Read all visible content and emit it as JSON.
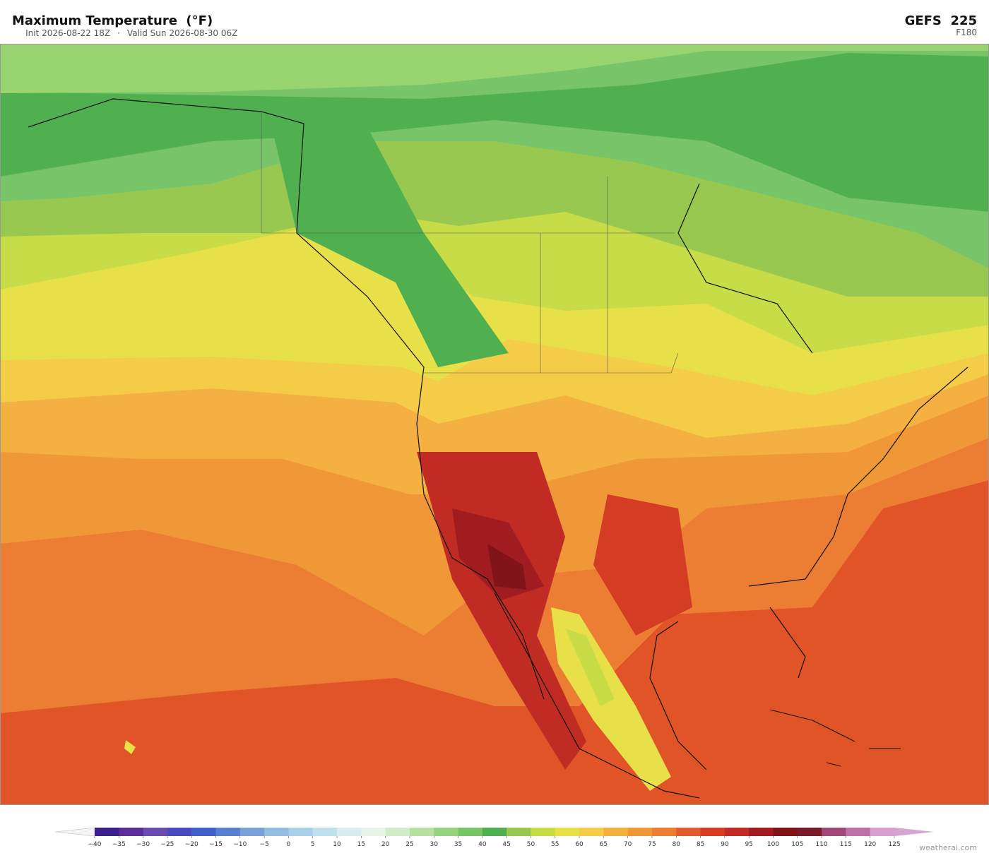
{
  "header": {
    "title": "Maximum Temperature  (°F)",
    "init": "Init 2026-08-22 18Z",
    "separator": "·",
    "valid": "Valid Sun 2026-08-30 06Z",
    "model": "GEFS  225",
    "forecast_hour": "F180"
  },
  "colorbar": {
    "ticks": [
      {
        "value": -40,
        "label": "−40"
      },
      {
        "value": -35,
        "label": "−35"
      },
      {
        "value": -30,
        "label": "−30"
      },
      {
        "value": -25,
        "label": "−25"
      },
      {
        "value": -20,
        "label": "−20"
      },
      {
        "value": -15,
        "label": "−15"
      },
      {
        "value": -10,
        "label": "−10"
      },
      {
        "value": -5,
        "label": "−5"
      },
      0,
      5,
      10,
      15,
      20,
      25,
      30,
      35,
      40,
      45,
      50,
      55,
      60,
      65,
      70,
      75,
      80,
      85,
      90,
      95,
      100,
      105,
      110,
      115,
      120,
      125
    ],
    "colors": [
      "#3b1f8c",
      "#5a2d9a",
      "#6a4bb0",
      "#4a4bbf",
      "#4060c8",
      "#5880d0",
      "#7aa0d8",
      "#94bde0",
      "#a8d0e8",
      "#c0e0ee",
      "#d8ecf2",
      "#e8f4ea",
      "#d0ecc8",
      "#b8e0a0",
      "#98d480",
      "#78c468",
      "#50b050",
      "#98c850",
      "#c8dc48",
      "#e8e048",
      "#f4cc48",
      "#f4b040",
      "#f09838",
      "#ec7e34",
      "#e45c2c",
      "#d43c24",
      "#c02c24",
      "#a01c20",
      "#801418",
      "#7a1a2a",
      "#a04878",
      "#c070a8",
      "#d8a0d0"
    ],
    "under_color": "#f4f4f4",
    "over_color": "#d8a4d4"
  },
  "footer": {
    "credit": "weatherai.com"
  }
}
